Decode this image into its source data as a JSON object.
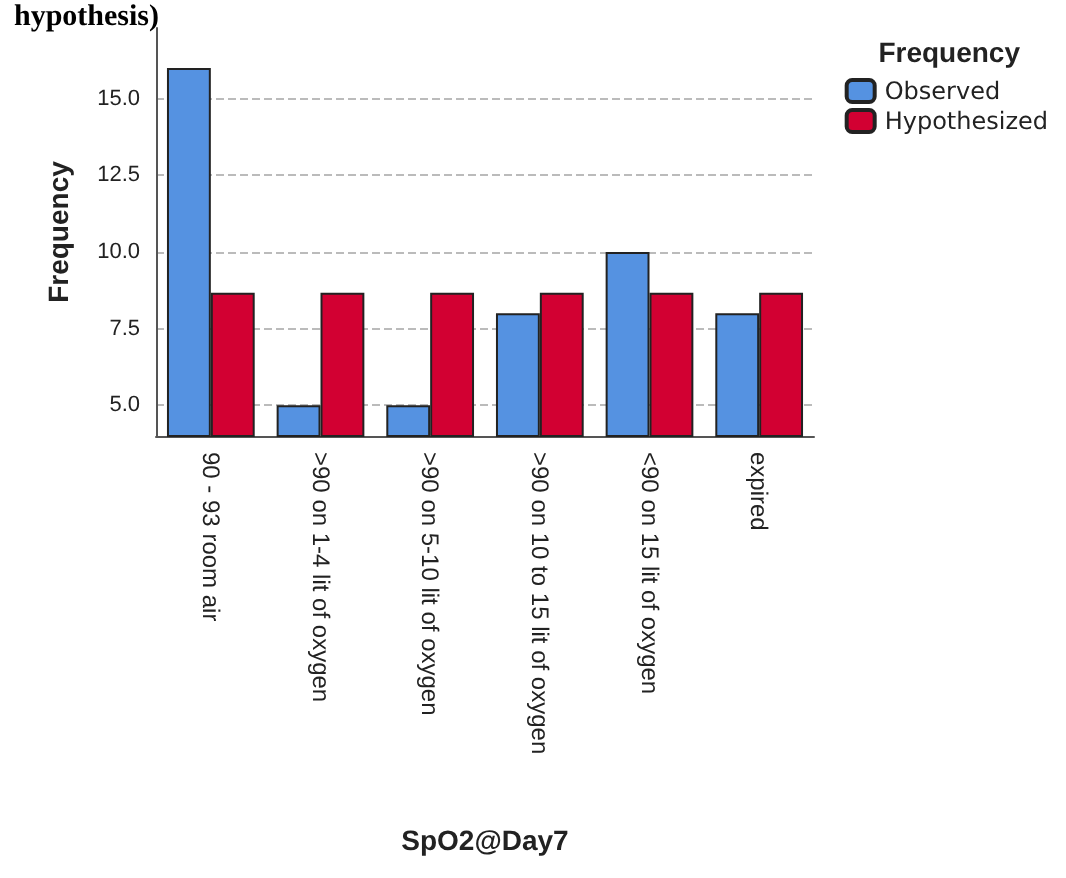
{
  "chart_data": {
    "type": "bar",
    "title": "hypothesis)",
    "xlabel": "SpO2@Day7",
    "ylabel": "Frequency",
    "legend_title": "Frequency",
    "categories": [
      "90 - 93 room air",
      ">90 on 1-4 lit of oxygen",
      ">90 on 5-10 lit of oxygen",
      ">90 on 10 to 15 lit of oxygen",
      "<90 on 15 lit of oxygen",
      "expired"
    ],
    "series": [
      {
        "name": "Observed",
        "color": "#5592e1",
        "values": [
          16,
          5,
          5,
          8,
          10,
          8
        ]
      },
      {
        "name": "Hypothesized",
        "color": "#d20032",
        "values": [
          8.67,
          8.67,
          8.67,
          8.67,
          8.67,
          8.67
        ]
      }
    ],
    "ylim": [
      4,
      17.3
    ],
    "yticks": [
      {
        "value": 5,
        "label": "5.0"
      },
      {
        "value": 7.5,
        "label": "7.5"
      },
      {
        "value": 10,
        "label": "10.0"
      },
      {
        "value": 12.5,
        "label": "12.5"
      },
      {
        "value": 15,
        "label": "15.0"
      }
    ],
    "grid": "y",
    "legend": "top right"
  }
}
